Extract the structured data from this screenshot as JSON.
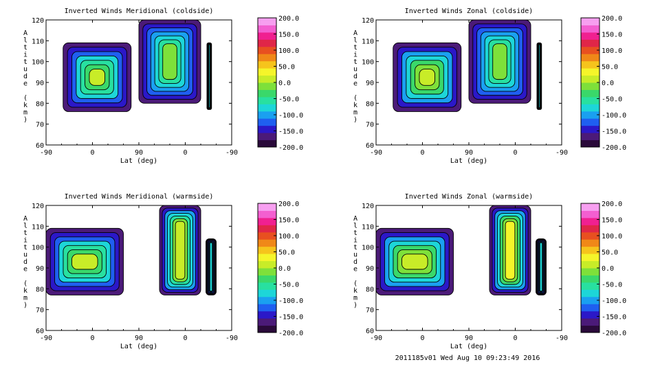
{
  "footer": "2011185v01 Wed Aug 10 09:23:49 2016",
  "colorbar": {
    "ticks": [
      "200.0",
      "150.0",
      "100.0",
      "50.0",
      "0.0",
      "-50.0",
      "-100.0",
      "-150.0",
      "-200.0"
    ],
    "colors": [
      "#2a0a3a",
      "#4b1a78",
      "#2b18c8",
      "#1f5ff0",
      "#1aa0f0",
      "#1dd6d8",
      "#28e0a0",
      "#3ad86a",
      "#7ee03a",
      "#c8ec28",
      "#f5f52a",
      "#f6c41c",
      "#f08818",
      "#e85020",
      "#e02648",
      "#f02090",
      "#f35fd0",
      "#f79ff0"
    ],
    "range": [
      -200,
      200
    ]
  },
  "chart_data": [
    {
      "type": "heatmap",
      "title": "Inverted Winds Meridional (coldside)",
      "xlabel": "Lat (deg)",
      "ylabel": "Altitude (km)",
      "xticks": [
        "-90",
        "0",
        "90",
        "0",
        "-90"
      ],
      "yticks": [
        "60",
        "70",
        "80",
        "90",
        "100",
        "110",
        "120"
      ],
      "ylim": [
        60,
        120
      ],
      "xlim": [
        -90,
        270
      ],
      "colorbar_range": [
        -200,
        200
      ],
      "swaths": [
        {
          "x_range": [
            -57,
            75
          ],
          "alt_range": [
            76,
            109
          ],
          "mean_value": 0
        },
        {
          "x_range": [
            90,
            210
          ],
          "alt_range": [
            80,
            120
          ],
          "mean_value": -20
        },
        {
          "x_range": [
            222,
            231
          ],
          "alt_range": [
            77,
            109
          ],
          "mean_value": -80
        }
      ]
    },
    {
      "type": "heatmap",
      "title": "Inverted Winds Zonal (coldside)",
      "xlabel": "Lat (deg)",
      "ylabel": "Altitude (km)",
      "xticks": [
        "-90",
        "0",
        "90",
        "0",
        "-90"
      ],
      "yticks": [
        "60",
        "70",
        "80",
        "90",
        "100",
        "110",
        "120"
      ],
      "ylim": [
        60,
        120
      ],
      "xlim": [
        -90,
        270
      ],
      "colorbar_range": [
        -200,
        200
      ],
      "swaths": [
        {
          "x_range": [
            -57,
            75
          ],
          "alt_range": [
            76,
            109
          ],
          "mean_value": 20
        },
        {
          "x_range": [
            90,
            210
          ],
          "alt_range": [
            80,
            120
          ],
          "mean_value": -20
        },
        {
          "x_range": [
            222,
            231
          ],
          "alt_range": [
            77,
            109
          ],
          "mean_value": -80
        }
      ]
    },
    {
      "type": "heatmap",
      "title": "Inverted Winds Meridional (warmside)",
      "xlabel": "Lat (deg)",
      "ylabel": "Altitude (km)",
      "xticks": [
        "-90",
        "0",
        "90",
        "0",
        "-90"
      ],
      "yticks": [
        "60",
        "70",
        "80",
        "90",
        "100",
        "110",
        "120"
      ],
      "ylim": [
        60,
        120
      ],
      "xlim": [
        -90,
        270
      ],
      "colorbar_range": [
        -200,
        200
      ],
      "swaths": [
        {
          "x_range": [
            -90,
            60
          ],
          "alt_range": [
            77,
            109
          ],
          "mean_value": 0
        },
        {
          "x_range": [
            130,
            210
          ],
          "alt_range": [
            77,
            120
          ],
          "mean_value": 10
        },
        {
          "x_range": [
            220,
            240
          ],
          "alt_range": [
            77,
            104
          ],
          "mean_value": -80
        }
      ]
    },
    {
      "type": "heatmap",
      "title": "Inverted Winds Zonal (warmside)",
      "xlabel": "Lat (deg)",
      "ylabel": "Altitude (km)",
      "xticks": [
        "-90",
        "0",
        "90",
        "0",
        "-90"
      ],
      "yticks": [
        "60",
        "70",
        "80",
        "90",
        "100",
        "110",
        "120"
      ],
      "ylim": [
        60,
        120
      ],
      "xlim": [
        -90,
        270
      ],
      "colorbar_range": [
        -200,
        200
      ],
      "swaths": [
        {
          "x_range": [
            -90,
            60
          ],
          "alt_range": [
            77,
            109
          ],
          "mean_value": 20
        },
        {
          "x_range": [
            130,
            210
          ],
          "alt_range": [
            77,
            120
          ],
          "mean_value": 30
        },
        {
          "x_range": [
            220,
            240
          ],
          "alt_range": [
            77,
            104
          ],
          "mean_value": -80
        }
      ]
    }
  ]
}
